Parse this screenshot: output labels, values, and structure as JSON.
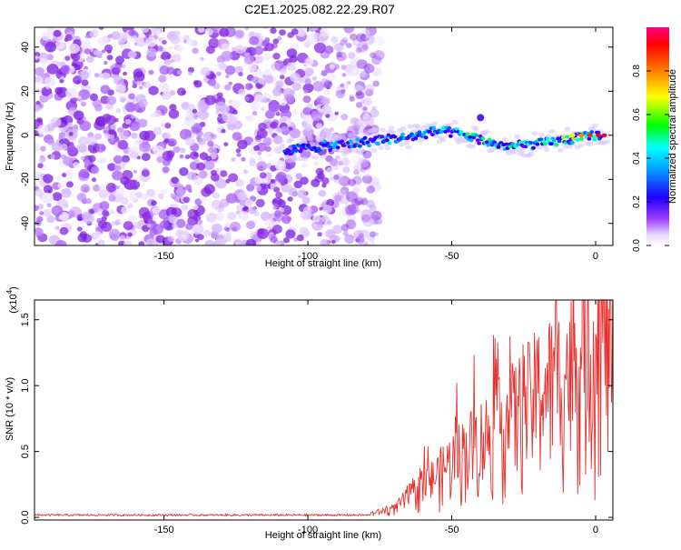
{
  "title": "C2E1.2025.082.22.29.R07",
  "chart_data": [
    {
      "type": "heatmap",
      "xlabel": "Height of straight line (km)",
      "ylabel": "Frequency (Hz)",
      "xlim": [
        -195,
        6
      ],
      "ylim": [
        -50,
        49
      ],
      "xticks": [
        -150,
        -100,
        -50,
        0
      ],
      "yticks": [
        -40,
        -20,
        0,
        20,
        40
      ],
      "colorbar": {
        "label": "Normalized spectral amplitude",
        "range": [
          0.0,
          1.0
        ],
        "ticks": [
          "0.0",
          "0.2",
          "0.4",
          "0.6",
          "0.8"
        ]
      },
      "ridge": {
        "x": [
          -108,
          -95,
          -85,
          -75,
          -65,
          -55,
          -48,
          -40,
          -35,
          -30,
          -20,
          -10,
          -5,
          0,
          3
        ],
        "frequency": [
          -7,
          -5,
          -4,
          -2,
          -1,
          2,
          1,
          -2,
          -4,
          -5,
          -4,
          -2,
          -1,
          0,
          0
        ]
      }
    },
    {
      "type": "line",
      "xlabel": "Height of straight line (km)",
      "ylabel": "SNR (10 * v/v)",
      "yscale_label": "(x10",
      "yscale_exp": "4",
      "xlim": [
        -195,
        6
      ],
      "ylim": [
        -0.02,
        1.65
      ],
      "xticks": [
        -150,
        -100,
        -50,
        0
      ],
      "yticks": [
        "0.0",
        "0.5",
        "1.0",
        "1.5"
      ],
      "envelope": {
        "x": [
          -195,
          -80,
          -70,
          -65,
          -60,
          -55,
          -50,
          -45,
          -40,
          -35,
          -30,
          -25,
          -20,
          -15,
          -10,
          -5,
          0,
          5
        ],
        "y": [
          0.01,
          0.02,
          0.06,
          0.15,
          0.22,
          0.3,
          0.4,
          0.48,
          0.55,
          0.62,
          0.7,
          0.78,
          0.88,
          0.95,
          1.02,
          1.1,
          1.2,
          1.3
        ]
      }
    }
  ],
  "colors": {
    "line": "#e8302e",
    "speckle": "#8a2be2"
  }
}
